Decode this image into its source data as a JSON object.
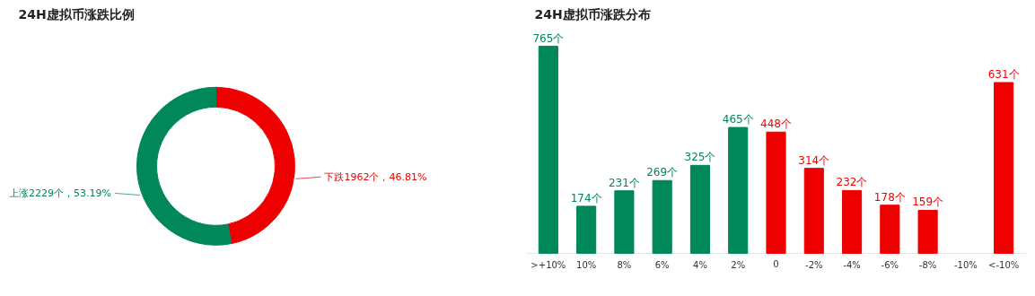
{
  "chart_data": [
    {
      "type": "donut",
      "title": "24H虚拟币涨跌比例",
      "categories": [
        "下跌",
        "上涨"
      ],
      "values": [
        1962,
        2229
      ],
      "colors": [
        "#ee0000",
        "#00875a"
      ],
      "value_labels": [
        "1962个，46.81%",
        "2229个，53.19%"
      ]
    },
    {
      "type": "bar",
      "title": "24H虚拟币涨跌分布",
      "categories": [
        ">+10%",
        "10%",
        "8%",
        "6%",
        "4%",
        "2%",
        "0",
        "-2%",
        "-4%",
        "-6%",
        "-8%",
        "-10%",
        "<-10%"
      ],
      "values": [
        765,
        174,
        231,
        269,
        325,
        465,
        448,
        314,
        232,
        178,
        159,
        null,
        631
      ],
      "colors": [
        "#00875a",
        "#00875a",
        "#00875a",
        "#00875a",
        "#00875a",
        "#00875a",
        "#ee0000",
        "#ee0000",
        "#ee0000",
        "#ee0000",
        "#ee0000",
        "#ee0000",
        "#ee0000"
      ],
      "value_labels": [
        "765个",
        "174个",
        "231个",
        "269个",
        "325个",
        "465个",
        "448个",
        "314个",
        "232个",
        "178个",
        "159个",
        null,
        "631个"
      ],
      "grid": false
    }
  ]
}
